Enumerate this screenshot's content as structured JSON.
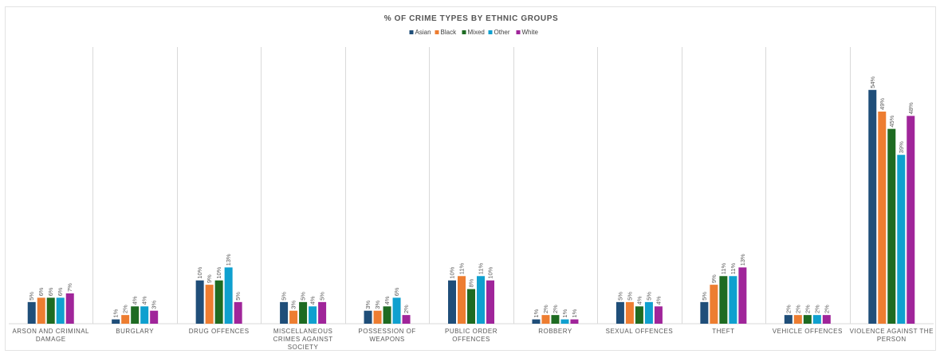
{
  "chart_data": {
    "type": "bar",
    "title": "% OF CRIME TYPES BY ETHNIC GROUPS",
    "legend_position": "top",
    "grid": false,
    "ylim": [
      0,
      57
    ],
    "categories": [
      "ARSON AND CRIMINAL DAMAGE",
      "BURGLARY",
      "DRUG OFFENCES",
      "MISCELLANEOUS CRIMES AGAINST SOCIETY",
      "POSSESSION OF WEAPONS",
      "PUBLIC ORDER OFFENCES",
      "ROBBERY",
      "SEXUAL OFFENCES",
      "THEFT",
      "VEHICLE OFFENCES",
      "VIOLENCE AGAINST THE PERSON"
    ],
    "category_lines": [
      [
        "ARSON AND CRIMINAL",
        "DAMAGE"
      ],
      [
        "BURGLARY"
      ],
      [
        "DRUG OFFENCES"
      ],
      [
        "MISCELLANEOUS",
        "CRIMES AGAINST",
        "SOCIETY"
      ],
      [
        "POSSESSION OF",
        "WEAPONS"
      ],
      [
        "PUBLIC ORDER",
        "OFFENCES"
      ],
      [
        "ROBBERY"
      ],
      [
        "SEXUAL OFFENCES"
      ],
      [
        "THEFT"
      ],
      [
        "VEHICLE OFFENCES"
      ],
      [
        "VIOLENCE AGAINST THE",
        "PERSON"
      ]
    ],
    "series": [
      {
        "name": "Asian",
        "color": "#1f4e79",
        "values": [
          5,
          1,
          10,
          5,
          3,
          10,
          1,
          5,
          5,
          2,
          54
        ],
        "labels": [
          "5%",
          "1%",
          "10%",
          "5%",
          "3%",
          "10%",
          "1%",
          "5%",
          "5%",
          "2%",
          "54%"
        ]
      },
      {
        "name": "Black",
        "color": "#ed7d31",
        "values": [
          6,
          2,
          9,
          3,
          3,
          11,
          2,
          5,
          9,
          2,
          49
        ],
        "labels": [
          "6%",
          "2%",
          "9%",
          "3%",
          "3%",
          "11%",
          "2%",
          "5%",
          "9%",
          "2%",
          "49%"
        ]
      },
      {
        "name": "Mixed",
        "color": "#1e6b22",
        "values": [
          6,
          4,
          10,
          5,
          4,
          8,
          2,
          4,
          11,
          2,
          45
        ],
        "labels": [
          "6%",
          "4%",
          "10%",
          "5%",
          "4%",
          "8%",
          "2%",
          "4%",
          "11%",
          "2%",
          "45%"
        ]
      },
      {
        "name": "Other",
        "color": "#0fa0cf",
        "values": [
          6,
          4,
          13,
          4,
          6,
          11,
          1,
          5,
          11,
          2,
          39
        ],
        "labels": [
          "6%",
          "4%",
          "13%",
          "4%",
          "6%",
          "11%",
          "1%",
          "5%",
          "11%",
          "2%",
          "39%"
        ]
      },
      {
        "name": "White",
        "color": "#a0259a",
        "values": [
          7,
          3,
          5,
          5,
          2,
          10,
          1,
          4,
          13,
          2,
          48
        ],
        "labels": [
          "7%",
          "3%",
          "5%",
          "5%",
          "2%",
          "10%",
          "1%",
          "4%",
          "13%",
          "2%",
          "48%"
        ]
      }
    ]
  }
}
